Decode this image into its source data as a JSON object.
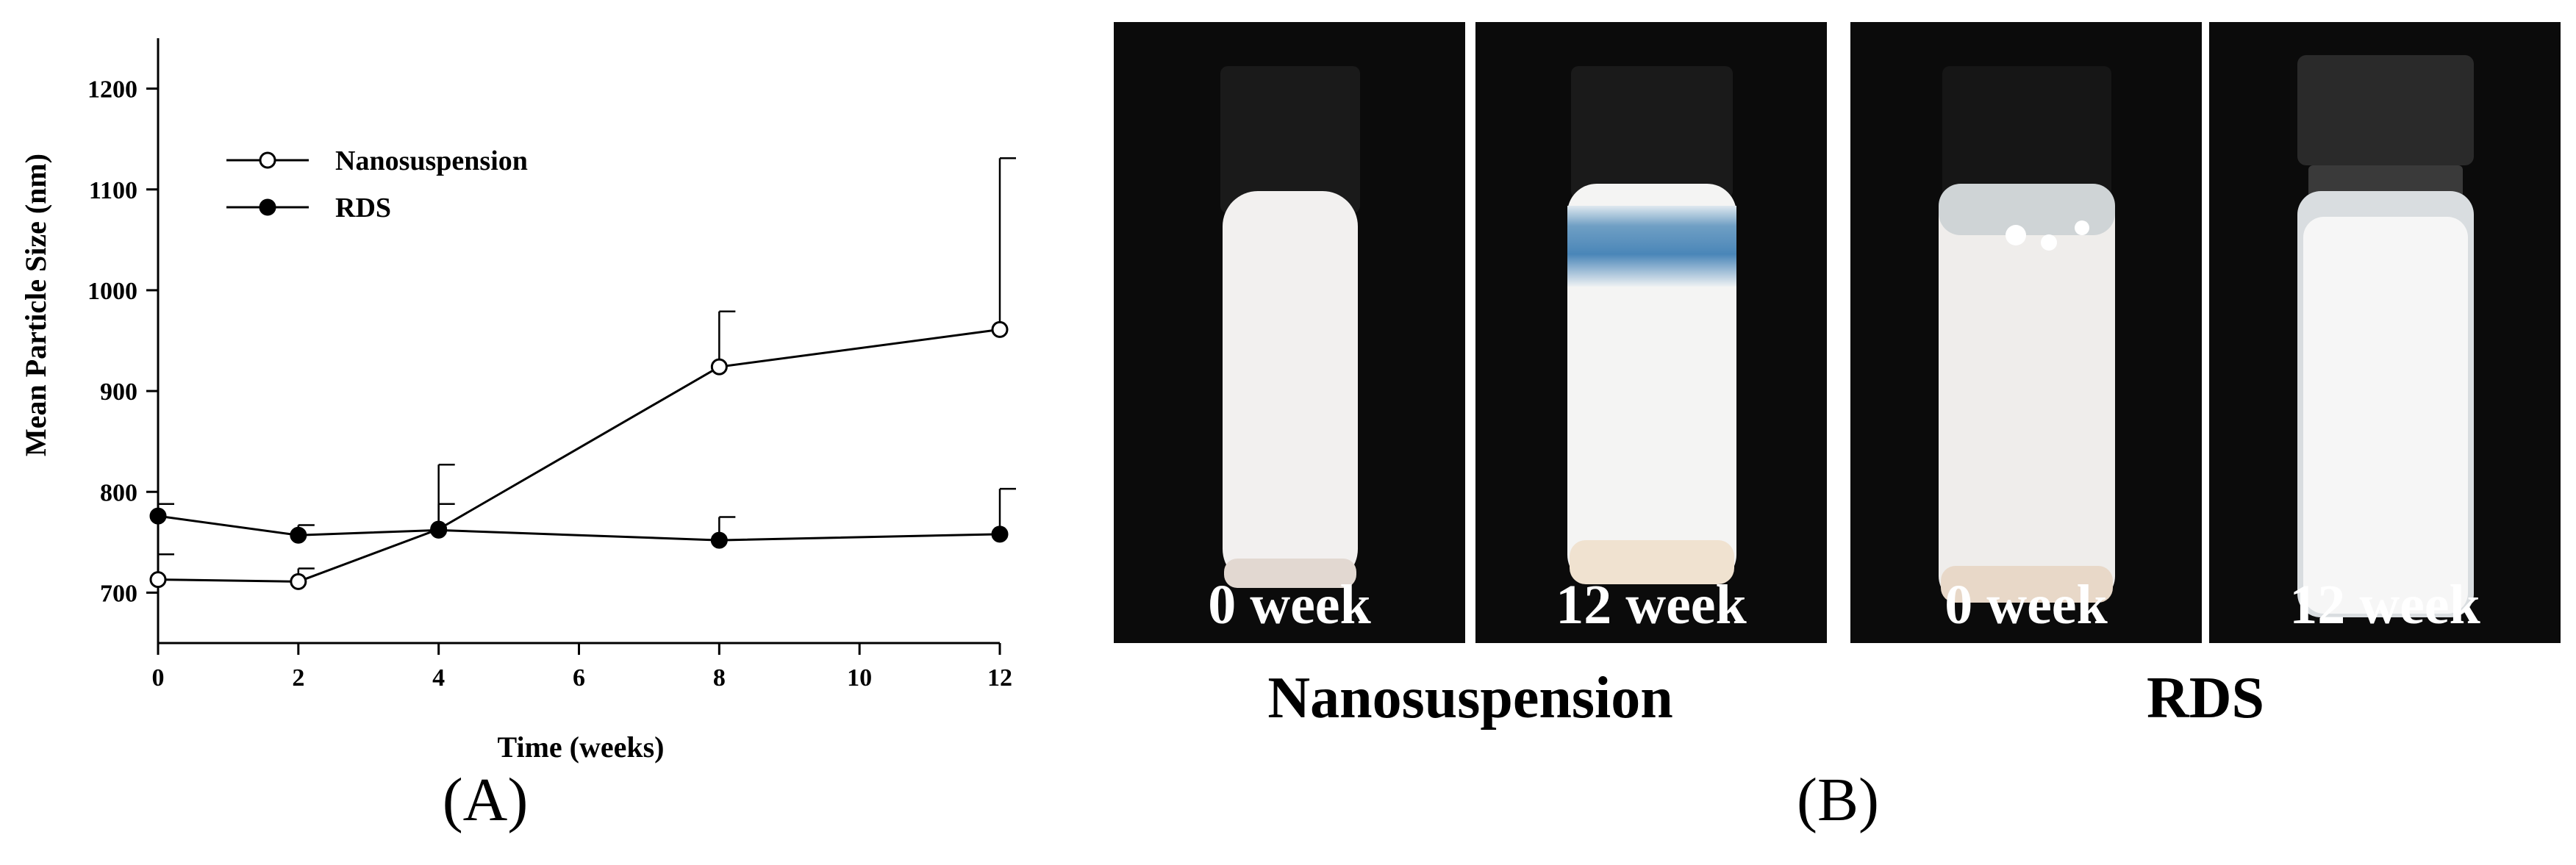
{
  "chart_data": {
    "type": "line",
    "xlabel": "Time (weeks)",
    "ylabel": "Mean Particle Size (nm)",
    "xlim": [
      0,
      12
    ],
    "ylim": [
      650,
      1250
    ],
    "xticks": [
      0,
      2,
      4,
      6,
      8,
      10,
      12
    ],
    "yticks": [
      700,
      800,
      900,
      1000,
      1100,
      1200
    ],
    "grid": false,
    "legend_position": "top-left",
    "series": [
      {
        "name": "Nanosuspension",
        "marker": "open-circle",
        "x": [
          0,
          2,
          4,
          8,
          12
        ],
        "y": [
          713,
          711,
          763,
          924,
          961
        ],
        "error_plus": [
          25,
          13,
          25,
          55,
          170
        ]
      },
      {
        "name": "RDS",
        "marker": "filled-circle",
        "x": [
          0,
          2,
          4,
          8,
          12
        ],
        "y": [
          776,
          757,
          762,
          752,
          758
        ],
        "error_plus": [
          12,
          10,
          65,
          23,
          45
        ]
      }
    ]
  },
  "panels": {
    "a_label": "(A)",
    "b_label": "(B)"
  },
  "photos": {
    "vials": [
      {
        "label": "0 week"
      },
      {
        "label": "12 week"
      },
      {
        "label": "0 week"
      },
      {
        "label": "12 week"
      }
    ],
    "captions": {
      "left": "Nanosuspension",
      "right": "RDS"
    }
  }
}
